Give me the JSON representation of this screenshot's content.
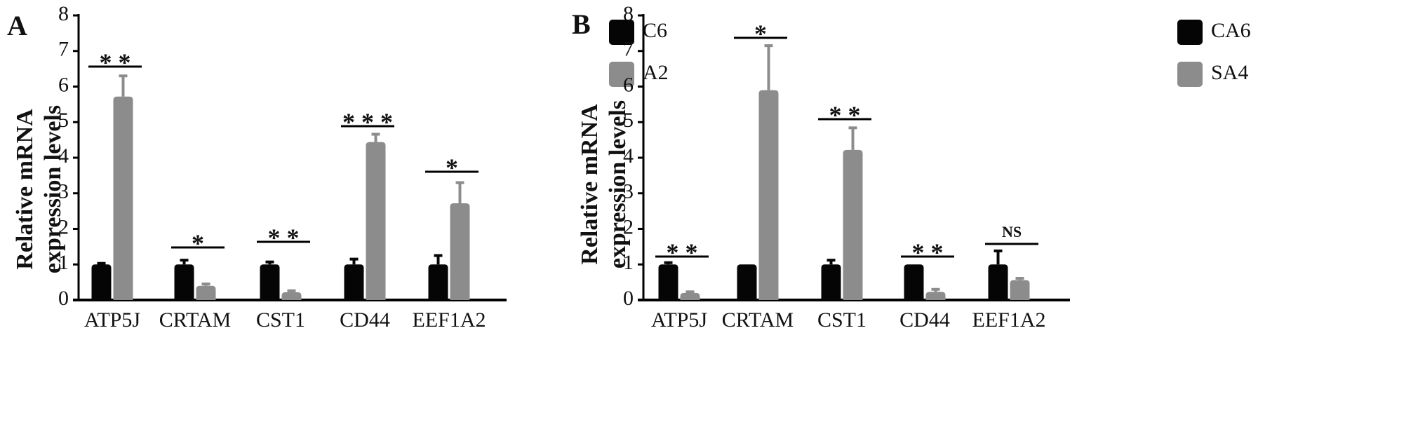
{
  "colors": {
    "black_series": "#050505",
    "gray_series": "#8c8c8c",
    "axis": "#000000"
  },
  "chart_data": [
    {
      "type": "bar",
      "panel_label": "A",
      "ylabel_line1": "Relative mRNA",
      "ylabel_line2": "expression  levels",
      "ylim": [
        0,
        8
      ],
      "yticks": [
        "0",
        "1",
        "2",
        "3",
        "4",
        "5",
        "6",
        "7",
        "8"
      ],
      "categories": [
        "ATP5J",
        "CRTAM",
        "CST1",
        "CD44",
        "EEF1A2"
      ],
      "series": [
        {
          "name": "C6",
          "values": [
            1.0,
            1.0,
            1.0,
            1.0,
            1.0
          ],
          "errors": [
            0.03,
            0.12,
            0.07,
            0.15,
            0.25
          ]
        },
        {
          "name": "A2",
          "values": [
            5.72,
            0.4,
            0.22,
            4.44,
            2.72
          ],
          "errors": [
            0.58,
            0.05,
            0.04,
            0.22,
            0.58
          ]
        }
      ],
      "significance": [
        "* *",
        "*",
        "* *",
        "* * *",
        "*"
      ],
      "legend_position": "top-right"
    },
    {
      "type": "bar",
      "panel_label": "B",
      "ylabel_line1": "Relative mRNA",
      "ylabel_line2": "expression levels",
      "ylim": [
        0,
        8
      ],
      "yticks": [
        "0",
        "1",
        "2",
        "3",
        "4",
        "5",
        "6",
        "7",
        "8"
      ],
      "categories": [
        "ATP5J",
        "CRTAM",
        "CST1",
        "CD44",
        "EEF1A2"
      ],
      "series": [
        {
          "name": "CA6",
          "values": [
            1.0,
            1.0,
            1.0,
            1.0,
            1.0
          ],
          "errors": [
            0.05,
            0.0,
            0.12,
            0.0,
            0.38
          ]
        },
        {
          "name": "SA4",
          "values": [
            0.2,
            5.9,
            4.22,
            0.23,
            0.56
          ],
          "errors": [
            0.03,
            1.25,
            0.62,
            0.07,
            0.05
          ]
        }
      ],
      "significance": [
        "* *",
        "*",
        "* *",
        "* *",
        "NS"
      ],
      "legend_position": "top-right"
    }
  ]
}
